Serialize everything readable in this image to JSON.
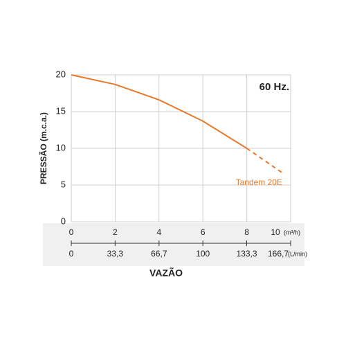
{
  "chart_data": {
    "type": "line",
    "annotation": "60 Hz.",
    "xlabel": "VAZÃO",
    "ylabel": "PRESSÃO (m.c.a.)",
    "x_unit": "(m³/h)",
    "x2_unit": "(L/min)",
    "xlim": [
      0,
      10
    ],
    "xticks": [
      0,
      2,
      4,
      6,
      8,
      10
    ],
    "x2lim": [
      0,
      166.7
    ],
    "x2ticks": [
      0,
      {
        "value": 33.3,
        "label": "33,3"
      },
      {
        "value": 66.7,
        "label": "66,7"
      },
      100,
      {
        "value": 133.3,
        "label": "133,3"
      },
      {
        "value": 166.7,
        "label": "166,7"
      }
    ],
    "ylim": [
      0,
      20
    ],
    "yticks": [
      0,
      5,
      10,
      15,
      20
    ],
    "grid": true,
    "series": [
      {
        "name": "Tandem 20E",
        "color": "#e8792b",
        "x": [
          0,
          2,
          4,
          6,
          8
        ],
        "values": [
          20,
          18.7,
          16.6,
          13.7,
          10
        ]
      },
      {
        "color": "#e8792b",
        "dashed": true,
        "x": [
          8,
          9.7
        ],
        "values": [
          10,
          6.5
        ]
      }
    ]
  }
}
